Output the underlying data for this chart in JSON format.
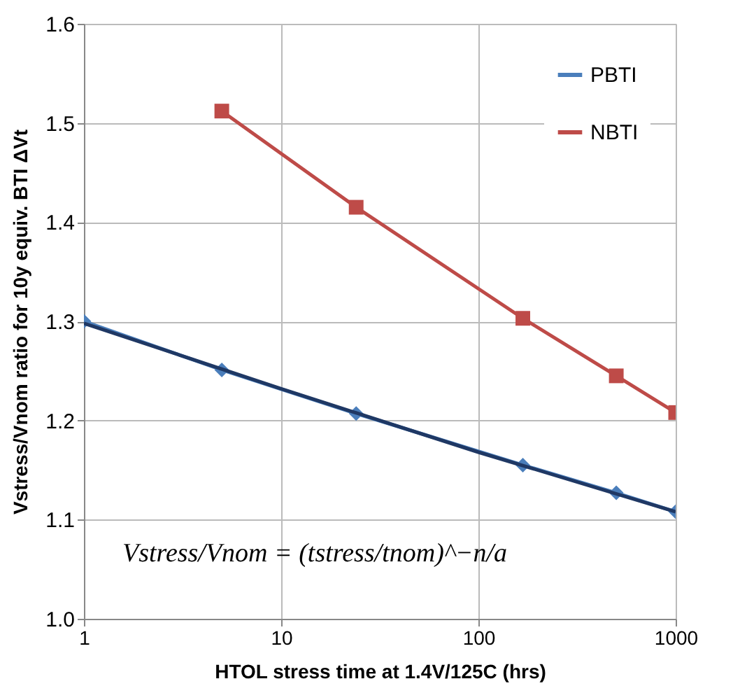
{
  "chart_data": {
    "type": "line",
    "xlabel": "HTOL stress time at 1.4V/125C (hrs)",
    "ylabel": "Vstress/Vnom ratio for 10y equiv. BTI ΔVt",
    "log": "x",
    "xlim": [
      1,
      1000
    ],
    "xticks": [
      1,
      10,
      100,
      1000
    ],
    "ylim": [
      1.0,
      1.6
    ],
    "yticks": [
      {
        "value": 1.0,
        "label": "1.0"
      },
      1.1,
      1.2,
      1.3,
      1.4,
      1.5,
      1.6
    ],
    "grid": true,
    "legend": "top right",
    "series": [
      {
        "name": "PBTI",
        "color": "#4a7ebb",
        "marker": "diamond",
        "x": [
          1,
          5,
          24,
          168,
          500,
          1000
        ],
        "values": [
          1.3,
          1.251,
          1.207,
          1.155,
          1.127,
          1.108
        ]
      },
      {
        "name": "NBTI",
        "color": "#be4b48",
        "marker": "square",
        "x": [
          5,
          24,
          168,
          500,
          1000
        ],
        "values": [
          1.512,
          1.415,
          1.303,
          1.245,
          1.208
        ]
      },
      {
        "color": "#1f3864",
        "marker": "none",
        "x": [
          1,
          10,
          100,
          1000
        ],
        "values": [
          1.298,
          1.232,
          1.168,
          1.108
        ]
      }
    ],
    "annotations": [
      "Vstress/Vnom = (tstress/tnom)^−n/a"
    ]
  }
}
